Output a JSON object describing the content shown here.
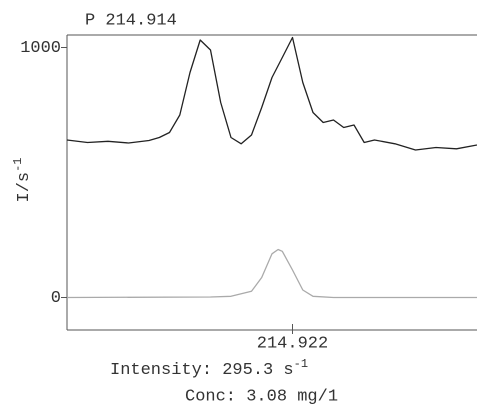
{
  "chart_data": {
    "type": "line",
    "title": "P 214.914",
    "ylabel": {
      "text": "I/s",
      "sup": "-1"
    },
    "annotations": [
      {
        "text": "Intensity: 295.3 s",
        "sup": "-1"
      },
      {
        "text": "Conc: 3.08 mg/1"
      }
    ],
    "xlim": [
      214.911,
      214.931
    ],
    "xticks": [
      214.922
    ],
    "ylim": [
      -130,
      1050
    ],
    "yticks": [
      0,
      1000
    ],
    "series": [
      {
        "color": "#222222",
        "x": [
          214.911,
          214.912,
          214.913,
          214.914,
          214.915,
          214.9155,
          214.916,
          214.9165,
          214.917,
          214.9175,
          214.918,
          214.9185,
          214.919,
          214.9195,
          214.92,
          214.9205,
          214.921,
          214.9215,
          214.922,
          214.9225,
          214.923,
          214.9235,
          214.924,
          214.9245,
          214.925,
          214.9255,
          214.926,
          214.927,
          214.928,
          214.929,
          214.93,
          214.931
        ],
        "values": [
          630,
          620,
          625,
          618,
          628,
          640,
          660,
          730,
          900,
          1030,
          990,
          780,
          640,
          615,
          650,
          760,
          880,
          960,
          1040,
          860,
          740,
          700,
          710,
          680,
          690,
          620,
          630,
          615,
          590,
          600,
          595,
          610
        ]
      },
      {
        "color": "#aaaaaa",
        "x": [
          214.911,
          214.918,
          214.919,
          214.92,
          214.9205,
          214.921,
          214.9213,
          214.9215,
          214.922,
          214.9225,
          214.923,
          214.924,
          214.931
        ],
        "values": [
          0,
          2,
          5,
          25,
          80,
          175,
          192,
          185,
          110,
          30,
          5,
          0,
          0
        ]
      }
    ]
  }
}
